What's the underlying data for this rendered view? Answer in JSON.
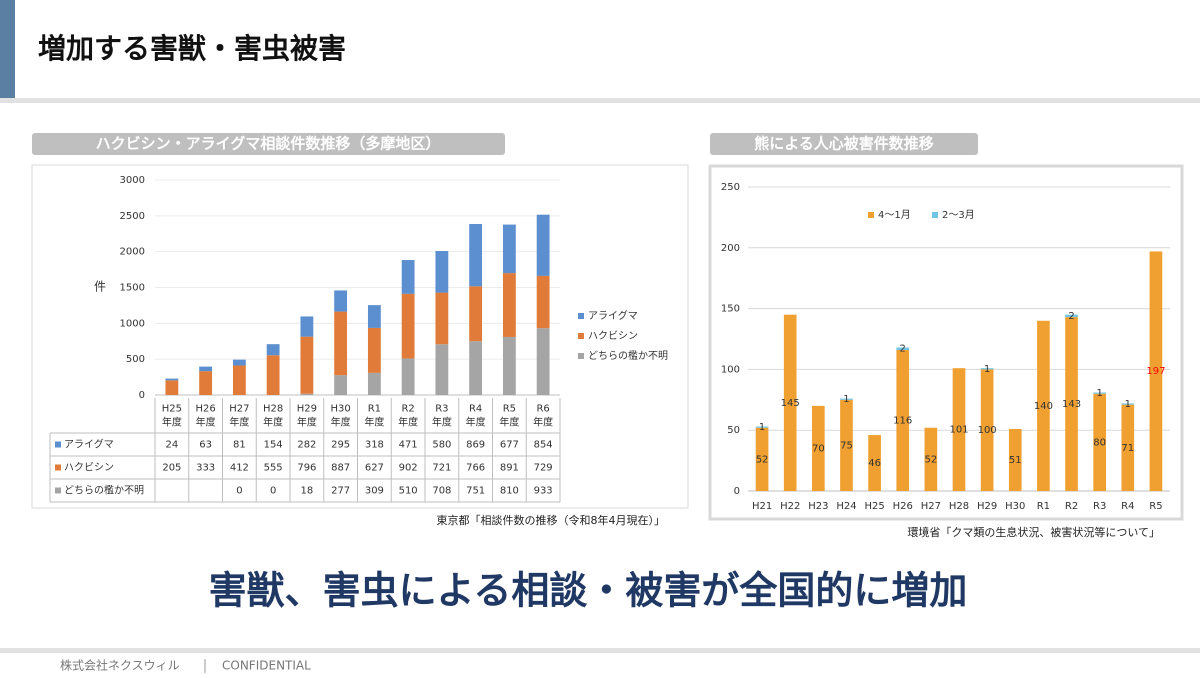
{
  "header": {
    "title": "増加する害獣・害虫被害"
  },
  "chart_data": [
    {
      "type": "stacked_bar",
      "title": "ハクビシン・アライグマ相談件数推移（多摩地区）",
      "y_label": "件",
      "categories": [
        "H25\n年度",
        "H26\n年度",
        "H27\n年度",
        "H28\n年度",
        "H29\n年度",
        "H30\n年度",
        "R1\n年度",
        "R2\n年度",
        "R3\n年度",
        "R4\n年度",
        "R5\n年度",
        "R6\n年度"
      ],
      "series": [
        {
          "name": "アライグマ",
          "color": "#5b8fd0",
          "values": [
            24,
            63,
            81,
            154,
            282,
            295,
            318,
            471,
            580,
            869,
            677,
            854
          ]
        },
        {
          "name": "ハクビシン",
          "color": "#e07b39",
          "values": [
            205,
            333,
            412,
            555,
            796,
            887,
            627,
            902,
            721,
            766,
            891,
            729
          ]
        },
        {
          "name": "どちらの檻か不明",
          "color": "#a5a5a5",
          "values": [
            null,
            null,
            0,
            0,
            18,
            277,
            309,
            510,
            708,
            751,
            810,
            933
          ]
        }
      ],
      "ylim": [
        0,
        3000
      ],
      "yticks": [
        0,
        500,
        1000,
        1500,
        2000,
        2500,
        3000
      ],
      "grid": true,
      "legend": "right",
      "data_table": true,
      "source": "東京都「相談件数の推移（令和8年4月現在）」"
    },
    {
      "type": "stacked_bar",
      "title": "熊による人心被害件数推移",
      "categories": [
        "H21",
        "H22",
        "H23",
        "H24",
        "H25",
        "H26",
        "H27",
        "H28",
        "H29",
        "H30",
        "R1",
        "R2",
        "R3",
        "R4",
        "R5"
      ],
      "series": [
        {
          "name": "4～1月",
          "color": "#f0a030",
          "values": [
            52,
            145,
            70,
            75,
            46,
            116,
            52,
            101,
            100,
            51,
            140,
            143,
            80,
            71,
            197
          ]
        },
        {
          "name": "2～3月",
          "color": "#70c4e4",
          "values": [
            1,
            null,
            null,
            1,
            null,
            2,
            null,
            null,
            1,
            null,
            null,
            2,
            1,
            1,
            null
          ]
        }
      ],
      "ylim": [
        0,
        250
      ],
      "yticks": [
        0,
        50,
        100,
        150,
        200,
        250
      ],
      "grid": true,
      "legend": "top",
      "data_labels": true,
      "highlight_label": {
        "series": 0,
        "index": 14,
        "color": "#ff0000"
      },
      "source": "環境省「クマ類の生息状況、被害状況等について」"
    }
  ],
  "headline": "害獣、害虫による相談・被害が全国的に増加",
  "footer": {
    "company": "株式会社ネクスウィル",
    "label": "CONFIDENTIAL"
  }
}
